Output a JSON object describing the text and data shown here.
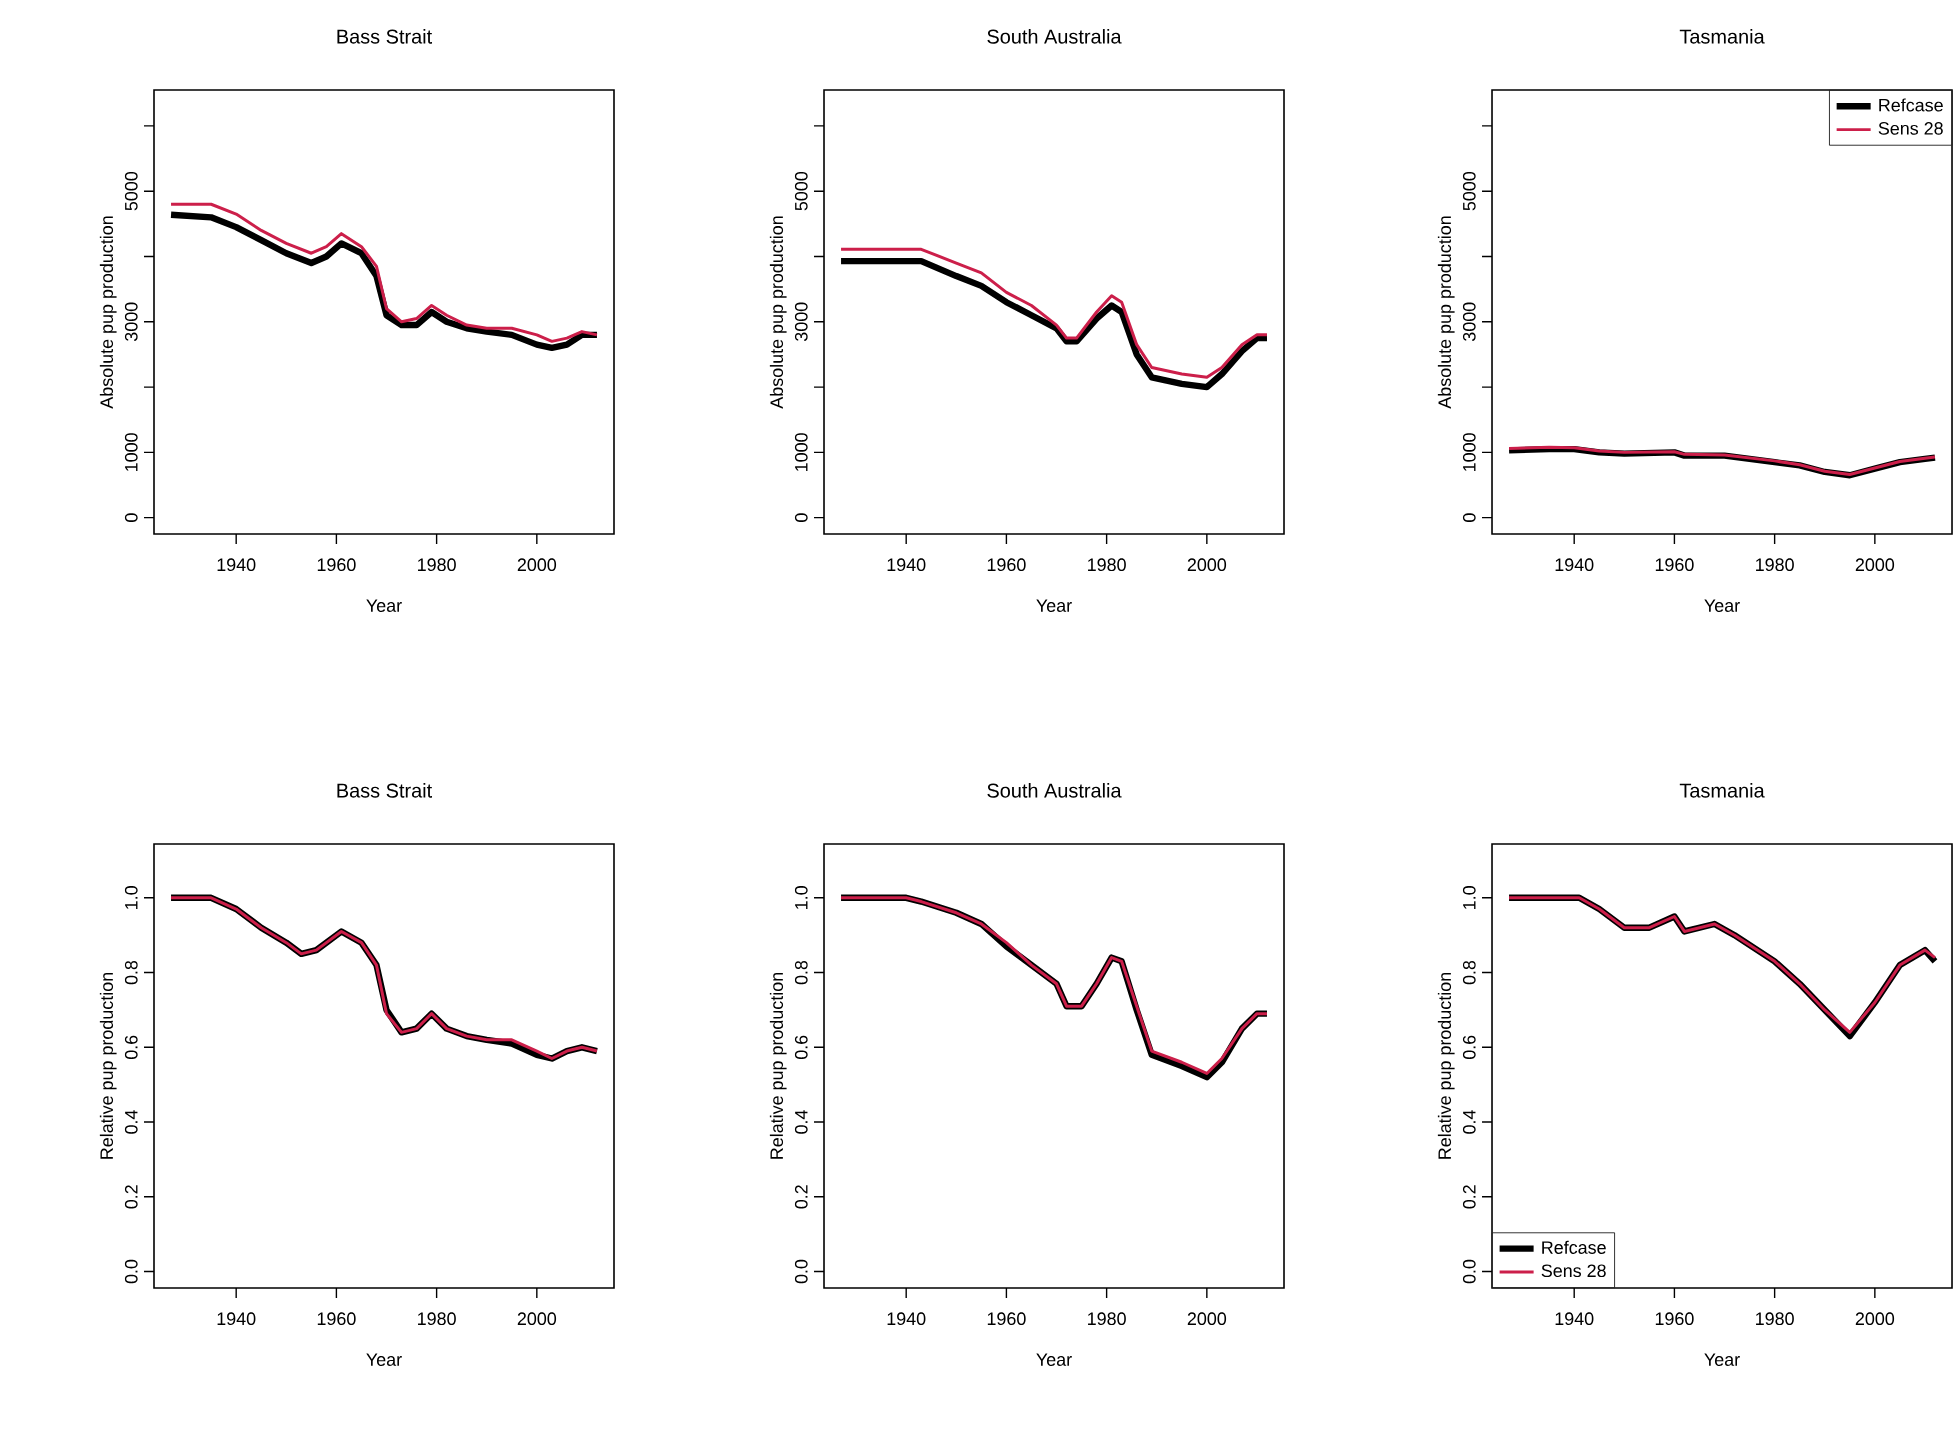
{
  "chart_data": [
    {
      "type": "line",
      "title": "Bass Strait",
      "xlabel": "Year",
      "ylabel": "Absolute pup production",
      "xlim": [
        1923.6,
        2015.4
      ],
      "ylim": [
        -250,
        6550
      ],
      "xticks": [
        1940,
        1960,
        1980,
        2000
      ],
      "yticks": [
        0,
        1000,
        {
          "value": 2000,
          "label": null
        },
        3000,
        {
          "value": 4000,
          "label": null
        },
        5000,
        {
          "value": 6000,
          "label": null
        }
      ],
      "x": [
        1927,
        1935,
        1940,
        1945,
        1950,
        1955,
        1958,
        1961,
        1965,
        1968,
        1970,
        1973,
        1976,
        1979,
        1982,
        1986,
        1990,
        1995,
        2000,
        2003,
        2006,
        2009,
        2012
      ],
      "series": [
        {
          "color": "#000000",
          "values": [
            4640,
            4600,
            4450,
            4250,
            4050,
            3900,
            4000,
            4200,
            4050,
            3700,
            3100,
            2950,
            2950,
            3150,
            3000,
            2900,
            2850,
            2800,
            2650,
            2600,
            2650,
            2800,
            2800
          ]
        },
        {
          "color": "#cc1f4a",
          "values": [
            4800,
            4800,
            4650,
            4400,
            4200,
            4050,
            4150,
            4350,
            4150,
            3850,
            3200,
            3000,
            3050,
            3250,
            3100,
            2950,
            2900,
            2900,
            2800,
            2700,
            2750,
            2850,
            2800
          ]
        }
      ]
    },
    {
      "type": "line",
      "title": "South Australia",
      "xlabel": "Year",
      "ylabel": "Absolute pup production",
      "xlim": [
        1923.6,
        2015.4
      ],
      "ylim": [
        -250,
        6550
      ],
      "xticks": [
        1940,
        1960,
        1980,
        2000
      ],
      "yticks": [
        0,
        1000,
        {
          "value": 2000,
          "label": null
        },
        3000,
        {
          "value": 4000,
          "label": null
        },
        5000,
        {
          "value": 6000,
          "label": null
        }
      ],
      "x": [
        1927,
        1935,
        1943,
        1950,
        1955,
        1960,
        1965,
        1970,
        1972,
        1974,
        1978,
        1981,
        1983,
        1986,
        1989,
        1995,
        2000,
        2003,
        2007,
        2010,
        2012
      ],
      "series": [
        {
          "color": "#000000",
          "values": [
            3930,
            3930,
            3930,
            3700,
            3550,
            3300,
            3100,
            2900,
            2700,
            2700,
            3050,
            3250,
            3150,
            2500,
            2150,
            2050,
            2000,
            2200,
            2550,
            2750,
            2750
          ]
        },
        {
          "color": "#cc1f4a",
          "values": [
            4110,
            4110,
            4110,
            3900,
            3750,
            3450,
            3250,
            2950,
            2750,
            2750,
            3150,
            3400,
            3300,
            2650,
            2300,
            2200,
            2150,
            2300,
            2650,
            2800,
            2800
          ]
        }
      ]
    },
    {
      "type": "line",
      "title": "Tasmania",
      "xlabel": "Year",
      "ylabel": "Absolute pup production",
      "xlim": [
        1923.6,
        2015.4
      ],
      "ylim": [
        -250,
        6550
      ],
      "xticks": [
        1940,
        1960,
        1980,
        2000
      ],
      "yticks": [
        0,
        1000,
        {
          "value": 2000,
          "label": null
        },
        3000,
        {
          "value": 4000,
          "label": null
        },
        5000,
        {
          "value": 6000,
          "label": null
        }
      ],
      "legend": "top right",
      "x": [
        1927,
        1935,
        1940,
        1945,
        1950,
        1960,
        1962,
        1970,
        1980,
        1985,
        1990,
        1995,
        2000,
        2005,
        2010,
        2012
      ],
      "series": [
        {
          "name": "Refcase",
          "color": "#000000",
          "values": [
            1030,
            1050,
            1050,
            1000,
            980,
            1000,
            950,
            950,
            850,
            800,
            700,
            650,
            750,
            850,
            900,
            920
          ]
        },
        {
          "name": "Sens 28",
          "color": "#cc1f4a",
          "values": [
            1060,
            1080,
            1070,
            1020,
            1000,
            1010,
            970,
            960,
            870,
            810,
            710,
            660,
            760,
            860,
            910,
            930
          ]
        }
      ]
    },
    {
      "type": "line",
      "title": "Bass Strait",
      "xlabel": "Year",
      "ylabel": "Relative pup production",
      "xlim": [
        1923.6,
        2015.4
      ],
      "ylim": [
        -0.044,
        1.144
      ],
      "xticks": [
        1940,
        1960,
        1980,
        2000
      ],
      "yticks": [
        {
          "value": 0,
          "label": "0.0"
        },
        0.2,
        0.4,
        0.6,
        0.8,
        {
          "value": 1,
          "label": "1.0"
        }
      ],
      "x": [
        1927,
        1935,
        1940,
        1945,
        1950,
        1953,
        1956,
        1961,
        1965,
        1968,
        1970,
        1973,
        1976,
        1979,
        1982,
        1986,
        1990,
        1995,
        2000,
        2003,
        2006,
        2009,
        2012
      ],
      "series": [
        {
          "color": "#000000",
          "values": [
            1.0,
            1.0,
            0.97,
            0.92,
            0.88,
            0.85,
            0.86,
            0.91,
            0.88,
            0.82,
            0.7,
            0.64,
            0.65,
            0.69,
            0.65,
            0.63,
            0.62,
            0.61,
            0.58,
            0.57,
            0.59,
            0.6,
            0.59
          ]
        },
        {
          "color": "#cc1f4a",
          "values": [
            1.0,
            1.0,
            0.97,
            0.92,
            0.88,
            0.85,
            0.86,
            0.91,
            0.88,
            0.82,
            0.69,
            0.64,
            0.65,
            0.69,
            0.65,
            0.63,
            0.62,
            0.62,
            0.59,
            0.57,
            0.59,
            0.6,
            0.59
          ]
        }
      ]
    },
    {
      "type": "line",
      "title": "South Australia",
      "xlabel": "Year",
      "ylabel": "Relative pup production",
      "xlim": [
        1923.6,
        2015.4
      ],
      "ylim": [
        -0.044,
        1.144
      ],
      "xticks": [
        1940,
        1960,
        1980,
        2000
      ],
      "yticks": [
        {
          "value": 0,
          "label": "0.0"
        },
        0.2,
        0.4,
        0.6,
        0.8,
        {
          "value": 1,
          "label": "1.0"
        }
      ],
      "x": [
        1927,
        1935,
        1940,
        1943,
        1950,
        1955,
        1960,
        1965,
        1970,
        1972,
        1975,
        1978,
        1981,
        1983,
        1986,
        1989,
        1995,
        2000,
        2003,
        2007,
        2010,
        2012
      ],
      "series": [
        {
          "color": "#000000",
          "values": [
            1.0,
            1.0,
            1.0,
            0.99,
            0.96,
            0.93,
            0.87,
            0.82,
            0.77,
            0.71,
            0.71,
            0.77,
            0.84,
            0.83,
            0.7,
            0.58,
            0.55,
            0.52,
            0.56,
            0.65,
            0.69,
            0.69
          ]
        },
        {
          "color": "#cc1f4a",
          "values": [
            1.0,
            1.0,
            1.0,
            0.99,
            0.96,
            0.93,
            0.88,
            0.82,
            0.77,
            0.71,
            0.71,
            0.77,
            0.84,
            0.83,
            0.71,
            0.59,
            0.56,
            0.53,
            0.57,
            0.65,
            0.69,
            0.69
          ]
        }
      ]
    },
    {
      "type": "line",
      "title": "Tasmania",
      "xlabel": "Year",
      "ylabel": "Relative pup production",
      "xlim": [
        1923.6,
        2015.4
      ],
      "ylim": [
        -0.044,
        1.144
      ],
      "xticks": [
        1940,
        1960,
        1980,
        2000
      ],
      "yticks": [
        {
          "value": 0,
          "label": "0.0"
        },
        0.2,
        0.4,
        0.6,
        0.8,
        {
          "value": 1,
          "label": "1.0"
        }
      ],
      "legend": "bottom left",
      "x": [
        1927,
        1935,
        1941,
        1945,
        1950,
        1955,
        1960,
        1962,
        1968,
        1972,
        1980,
        1985,
        1990,
        1995,
        2000,
        2005,
        2010,
        2012
      ],
      "series": [
        {
          "name": "Refcase",
          "color": "#000000",
          "values": [
            1.0,
            1.0,
            1.0,
            0.97,
            0.92,
            0.92,
            0.95,
            0.91,
            0.93,
            0.9,
            0.83,
            0.77,
            0.7,
            0.63,
            0.72,
            0.82,
            0.86,
            0.83
          ]
        },
        {
          "name": "Sens 28",
          "color": "#cc1f4a",
          "values": [
            1.0,
            1.0,
            1.0,
            0.97,
            0.92,
            0.92,
            0.95,
            0.91,
            0.93,
            0.9,
            0.83,
            0.77,
            0.7,
            0.64,
            0.72,
            0.82,
            0.86,
            0.84
          ]
        }
      ]
    }
  ]
}
